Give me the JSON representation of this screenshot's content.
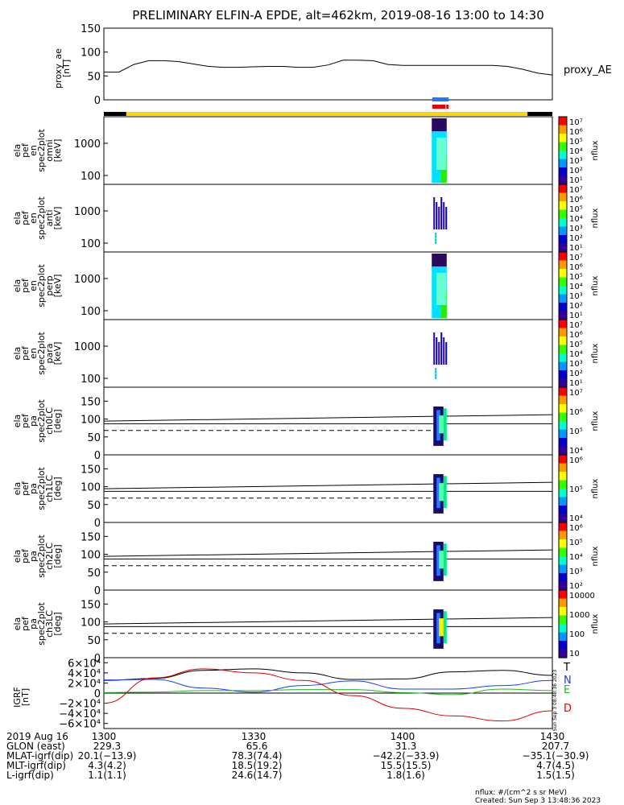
{
  "title": "PRELIMINARY ELFIN-A EPDE, alt=462km, 2019-08-16 13:00 to 14:30",
  "ae_panel": {
    "ylabel": [
      "proxy_ae",
      "[nT]"
    ],
    "ticks": [
      "150",
      "100",
      "50",
      "0"
    ],
    "legend": "proxy_AE"
  },
  "spec_panels": [
    {
      "ylabel": [
        "ela",
        "pef",
        "en",
        "spec2plot",
        "omni",
        "[keV]"
      ],
      "ticks": [
        "1000",
        "100"
      ],
      "cb_ticks": [
        "10⁷",
        "10⁶",
        "10⁵",
        "10⁴",
        "10³",
        "10²",
        "10¹"
      ],
      "cb_label": "nflux"
    },
    {
      "ylabel": [
        "ela",
        "pef",
        "en",
        "spec2plot",
        "anti",
        "[keV]"
      ],
      "ticks": [
        "1000",
        "100"
      ],
      "cb_ticks": [
        "10⁷",
        "10⁶",
        "10⁵",
        "10⁴",
        "10³",
        "10²",
        "10¹"
      ],
      "cb_label": "nflux"
    },
    {
      "ylabel": [
        "ela",
        "pef",
        "en",
        "spec2plot",
        "perp",
        "[keV]"
      ],
      "ticks": [
        "1000",
        "100"
      ],
      "cb_ticks": [
        "10⁷",
        "10⁶",
        "10⁵",
        "10⁴",
        "10³",
        "10²",
        "10¹"
      ],
      "cb_label": "nflux"
    },
    {
      "ylabel": [
        "ela",
        "pef",
        "en",
        "spec2plot",
        "para",
        "[keV]"
      ],
      "ticks": [
        "1000",
        "100"
      ],
      "cb_ticks": [
        "10⁷",
        "10⁶",
        "10⁵",
        "10⁴",
        "10³",
        "10²",
        "10¹"
      ],
      "cb_label": "nflux"
    }
  ],
  "pa_panels": [
    {
      "ylabel": [
        "ela",
        "pef",
        "pa",
        "spec2plot",
        "ch0LC",
        "[deg]"
      ],
      "ticks": [
        "150",
        "100",
        "50",
        "0"
      ],
      "cb_ticks": [
        "10⁷",
        "10⁶",
        "10⁵",
        "10⁴"
      ],
      "cb_label": "nflux"
    },
    {
      "ylabel": [
        "ela",
        "pef",
        "pa",
        "spec2plot",
        "ch1LC",
        "[deg]"
      ],
      "ticks": [
        "150",
        "100",
        "50",
        "0"
      ],
      "cb_ticks": [
        "10⁶",
        "10⁵",
        "10⁴"
      ],
      "cb_label": "nflux"
    },
    {
      "ylabel": [
        "ela",
        "pef",
        "pa",
        "spec2plot",
        "ch2LC",
        "[deg]"
      ],
      "ticks": [
        "150",
        "100",
        "50",
        "0"
      ],
      "cb_ticks": [
        "10⁶",
        "10⁵",
        "10⁴",
        "10³",
        "10²"
      ],
      "cb_label": "nflux"
    },
    {
      "ylabel": [
        "ela",
        "pef",
        "pa",
        "spec2plot",
        "ch3LC",
        "[deg]"
      ],
      "ticks": [
        "150",
        "100",
        "50",
        "0"
      ],
      "cb_ticks": [
        "10000",
        "1000",
        "100",
        "10"
      ],
      "cb_label": "nflux"
    }
  ],
  "igrf_panel": {
    "ylabel": [
      "IGRF",
      "[nT]"
    ],
    "ticks": [
      "6×10⁴",
      "4×10⁴",
      "2×10⁴",
      "0",
      "−2×10⁴",
      "−4×10⁴",
      "−6×10⁴"
    ],
    "legend": [
      "T",
      "N",
      "E",
      "D"
    ],
    "legend_colors": [
      "#000000",
      "#1a3cff",
      "#22bb22",
      "#dd0000"
    ],
    "side_stamp": "Sun Sep  3 08:48:36 2023"
  },
  "footer": {
    "labels": [
      "2019 Aug 16",
      "GLON (east)",
      "MLAT-igrf(dip)",
      "MLT-igrf(dip)",
      "L-igrf(dip)"
    ],
    "columns": [
      [
        "1300",
        "229.3",
        "20.1(−13.9)",
        "4.3(4.2)",
        "1.1(1.1)"
      ],
      [
        "1330",
        "65.6",
        "78.3(74.4)",
        "18.5(19.2)",
        "24.6(14.7)"
      ],
      [
        "1400",
        "31.3",
        "−42.2(−33.9)",
        "15.5(15.5)",
        "1.8(1.6)"
      ],
      [
        "1430",
        "207.7",
        "−35.1(−30.9)",
        "4.7(4.5)",
        "1.5(1.5)"
      ]
    ],
    "units_note": "nflux: #/(cm^2 s sr MeV)",
    "created": "Created: Sun Sep  3 13:48:36 2023"
  },
  "colors": {
    "bar_black": "#000000",
    "bar_yellow": "#ffd700",
    "sci_blue": "#1e7bff",
    "sci_red": "#ee0000",
    "colorbar": [
      "#ff0000",
      "#ff9900",
      "#ffff00",
      "#33ff00",
      "#00ffcc",
      "#0099ff",
      "#0000cc",
      "#330099",
      "#000000"
    ]
  },
  "chart_data": {
    "type": "line",
    "time_range": [
      "2019-08-16 13:00",
      "2019-08-16 14:30"
    ],
    "x_ticks": [
      "1300",
      "1330",
      "1400",
      "1430"
    ],
    "proxy_ae": {
      "ylim": [
        0,
        150
      ],
      "x_minutes": [
        0,
        3,
        6,
        9,
        12,
        15,
        18,
        21,
        24,
        27,
        30,
        33,
        36,
        39,
        42,
        45,
        48,
        51,
        54,
        57,
        60,
        63,
        66,
        69,
        72,
        75,
        78,
        81,
        84,
        87,
        90
      ],
      "values": [
        58,
        58,
        74,
        82,
        82,
        80,
        75,
        70,
        68,
        68,
        69,
        70,
        70,
        68,
        68,
        73,
        83,
        83,
        82,
        74,
        72,
        72,
        72,
        72,
        72,
        72,
        72,
        70,
        64,
        56,
        52
      ]
    },
    "orbit_bar": {
      "black_minutes": [
        [
          0,
          4.5
        ],
        [
          85,
          90
        ]
      ],
      "yellow_minutes": [
        4.5,
        85
      ]
    },
    "science_zone_minutes": [
      65.9,
      69.2
    ],
    "flux_interval_minutes": [
      65.8,
      68.8
    ],
    "pa_reference_lines_deg": {
      "solid_top": 101,
      "solid_bottom": 87,
      "dashed": 68
    },
    "igrf": {
      "ylim": [
        -70000,
        70000
      ],
      "x_minutes": [
        0,
        10,
        20,
        30,
        40,
        50,
        60,
        70,
        80,
        90
      ],
      "series": [
        {
          "name": "T",
          "values": [
            25000,
            29000,
            45000,
            48000,
            40000,
            27000,
            28000,
            42000,
            45000,
            35000
          ]
        },
        {
          "name": "N",
          "values": [
            26000,
            27000,
            10000,
            2000,
            15000,
            24000,
            8000,
            8000,
            15000,
            25000
          ]
        },
        {
          "name": "E",
          "values": [
            1000,
            2000,
            5000,
            5000,
            7000,
            7000,
            1000,
            -3000,
            8000,
            5000
          ]
        },
        {
          "name": "D",
          "values": [
            -20000,
            30000,
            48000,
            40000,
            25000,
            -5000,
            -30000,
            -45000,
            -55000,
            -35000
          ]
        }
      ]
    }
  }
}
